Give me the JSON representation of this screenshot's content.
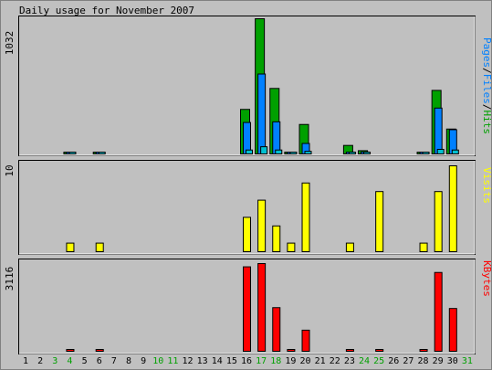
{
  "chart_data": [
    {
      "type": "bar",
      "title": "Daily usage for November 2007",
      "ylabel": "1032",
      "legend": [
        "Pages",
        "Files",
        "Hits"
      ],
      "legend_sep": "/",
      "colors": {
        "Hits": "#00a000",
        "Files": "#0080ff",
        "Pages": "#00c0d0"
      },
      "categories": [
        "1",
        "2",
        "3",
        "4",
        "5",
        "6",
        "7",
        "8",
        "9",
        "10",
        "11",
        "12",
        "13",
        "14",
        "15",
        "16",
        "17",
        "18",
        "19",
        "20",
        "21",
        "22",
        "23",
        "24",
        "25",
        "26",
        "27",
        "28",
        "29",
        "30",
        "31"
      ],
      "weekend_days": [
        "3",
        "4",
        "10",
        "11",
        "17",
        "18",
        "24",
        "25",
        "31"
      ],
      "ylim": [
        0,
        1032
      ],
      "series": [
        {
          "name": "Hits",
          "values": [
            0,
            0,
            0,
            10,
            0,
            12,
            0,
            0,
            0,
            0,
            0,
            0,
            0,
            0,
            0,
            340,
            1032,
            500,
            12,
            225,
            0,
            0,
            65,
            25,
            0,
            0,
            0,
            12,
            485,
            190,
            0
          ]
        },
        {
          "name": "Files",
          "values": [
            0,
            0,
            0,
            5,
            0,
            6,
            0,
            0,
            0,
            0,
            0,
            0,
            0,
            0,
            0,
            240,
            610,
            245,
            6,
            80,
            0,
            0,
            8,
            15,
            0,
            0,
            0,
            6,
            350,
            185,
            0
          ]
        },
        {
          "name": "Pages",
          "values": [
            0,
            0,
            0,
            2,
            0,
            2,
            0,
            0,
            0,
            0,
            0,
            0,
            0,
            0,
            0,
            30,
            55,
            30,
            3,
            20,
            0,
            0,
            3,
            10,
            0,
            0,
            0,
            2,
            35,
            30,
            0
          ]
        }
      ]
    },
    {
      "type": "bar",
      "ylabel": "10",
      "legend": [
        "Visits"
      ],
      "colors": {
        "Visits": "#ffff00"
      },
      "categories": [
        "1",
        "2",
        "3",
        "4",
        "5",
        "6",
        "7",
        "8",
        "9",
        "10",
        "11",
        "12",
        "13",
        "14",
        "15",
        "16",
        "17",
        "18",
        "19",
        "20",
        "21",
        "22",
        "23",
        "24",
        "25",
        "26",
        "27",
        "28",
        "29",
        "30",
        "31"
      ],
      "ylim": [
        0,
        10
      ],
      "series": [
        {
          "name": "Visits",
          "values": [
            0,
            0,
            0,
            1,
            0,
            1,
            0,
            0,
            0,
            0,
            0,
            0,
            0,
            0,
            0,
            4,
            6,
            3,
            1,
            8,
            0,
            0,
            1,
            0,
            7,
            0,
            0,
            1,
            7,
            10,
            0
          ]
        }
      ]
    },
    {
      "type": "bar",
      "ylabel": "3116",
      "legend": [
        "KBytes"
      ],
      "colors": {
        "KBytes": "#ff0000"
      },
      "categories": [
        "1",
        "2",
        "3",
        "4",
        "5",
        "6",
        "7",
        "8",
        "9",
        "10",
        "11",
        "12",
        "13",
        "14",
        "15",
        "16",
        "17",
        "18",
        "19",
        "20",
        "21",
        "22",
        "23",
        "24",
        "25",
        "26",
        "27",
        "28",
        "29",
        "30",
        "31"
      ],
      "ylim": [
        0,
        3116
      ],
      "series": [
        {
          "name": "KBytes",
          "values": [
            0,
            0,
            0,
            20,
            0,
            20,
            0,
            0,
            0,
            0,
            0,
            0,
            0,
            0,
            0,
            3000,
            3116,
            1550,
            30,
            750,
            0,
            0,
            20,
            0,
            50,
            0,
            0,
            20,
            2800,
            1520,
            0
          ]
        }
      ]
    }
  ]
}
